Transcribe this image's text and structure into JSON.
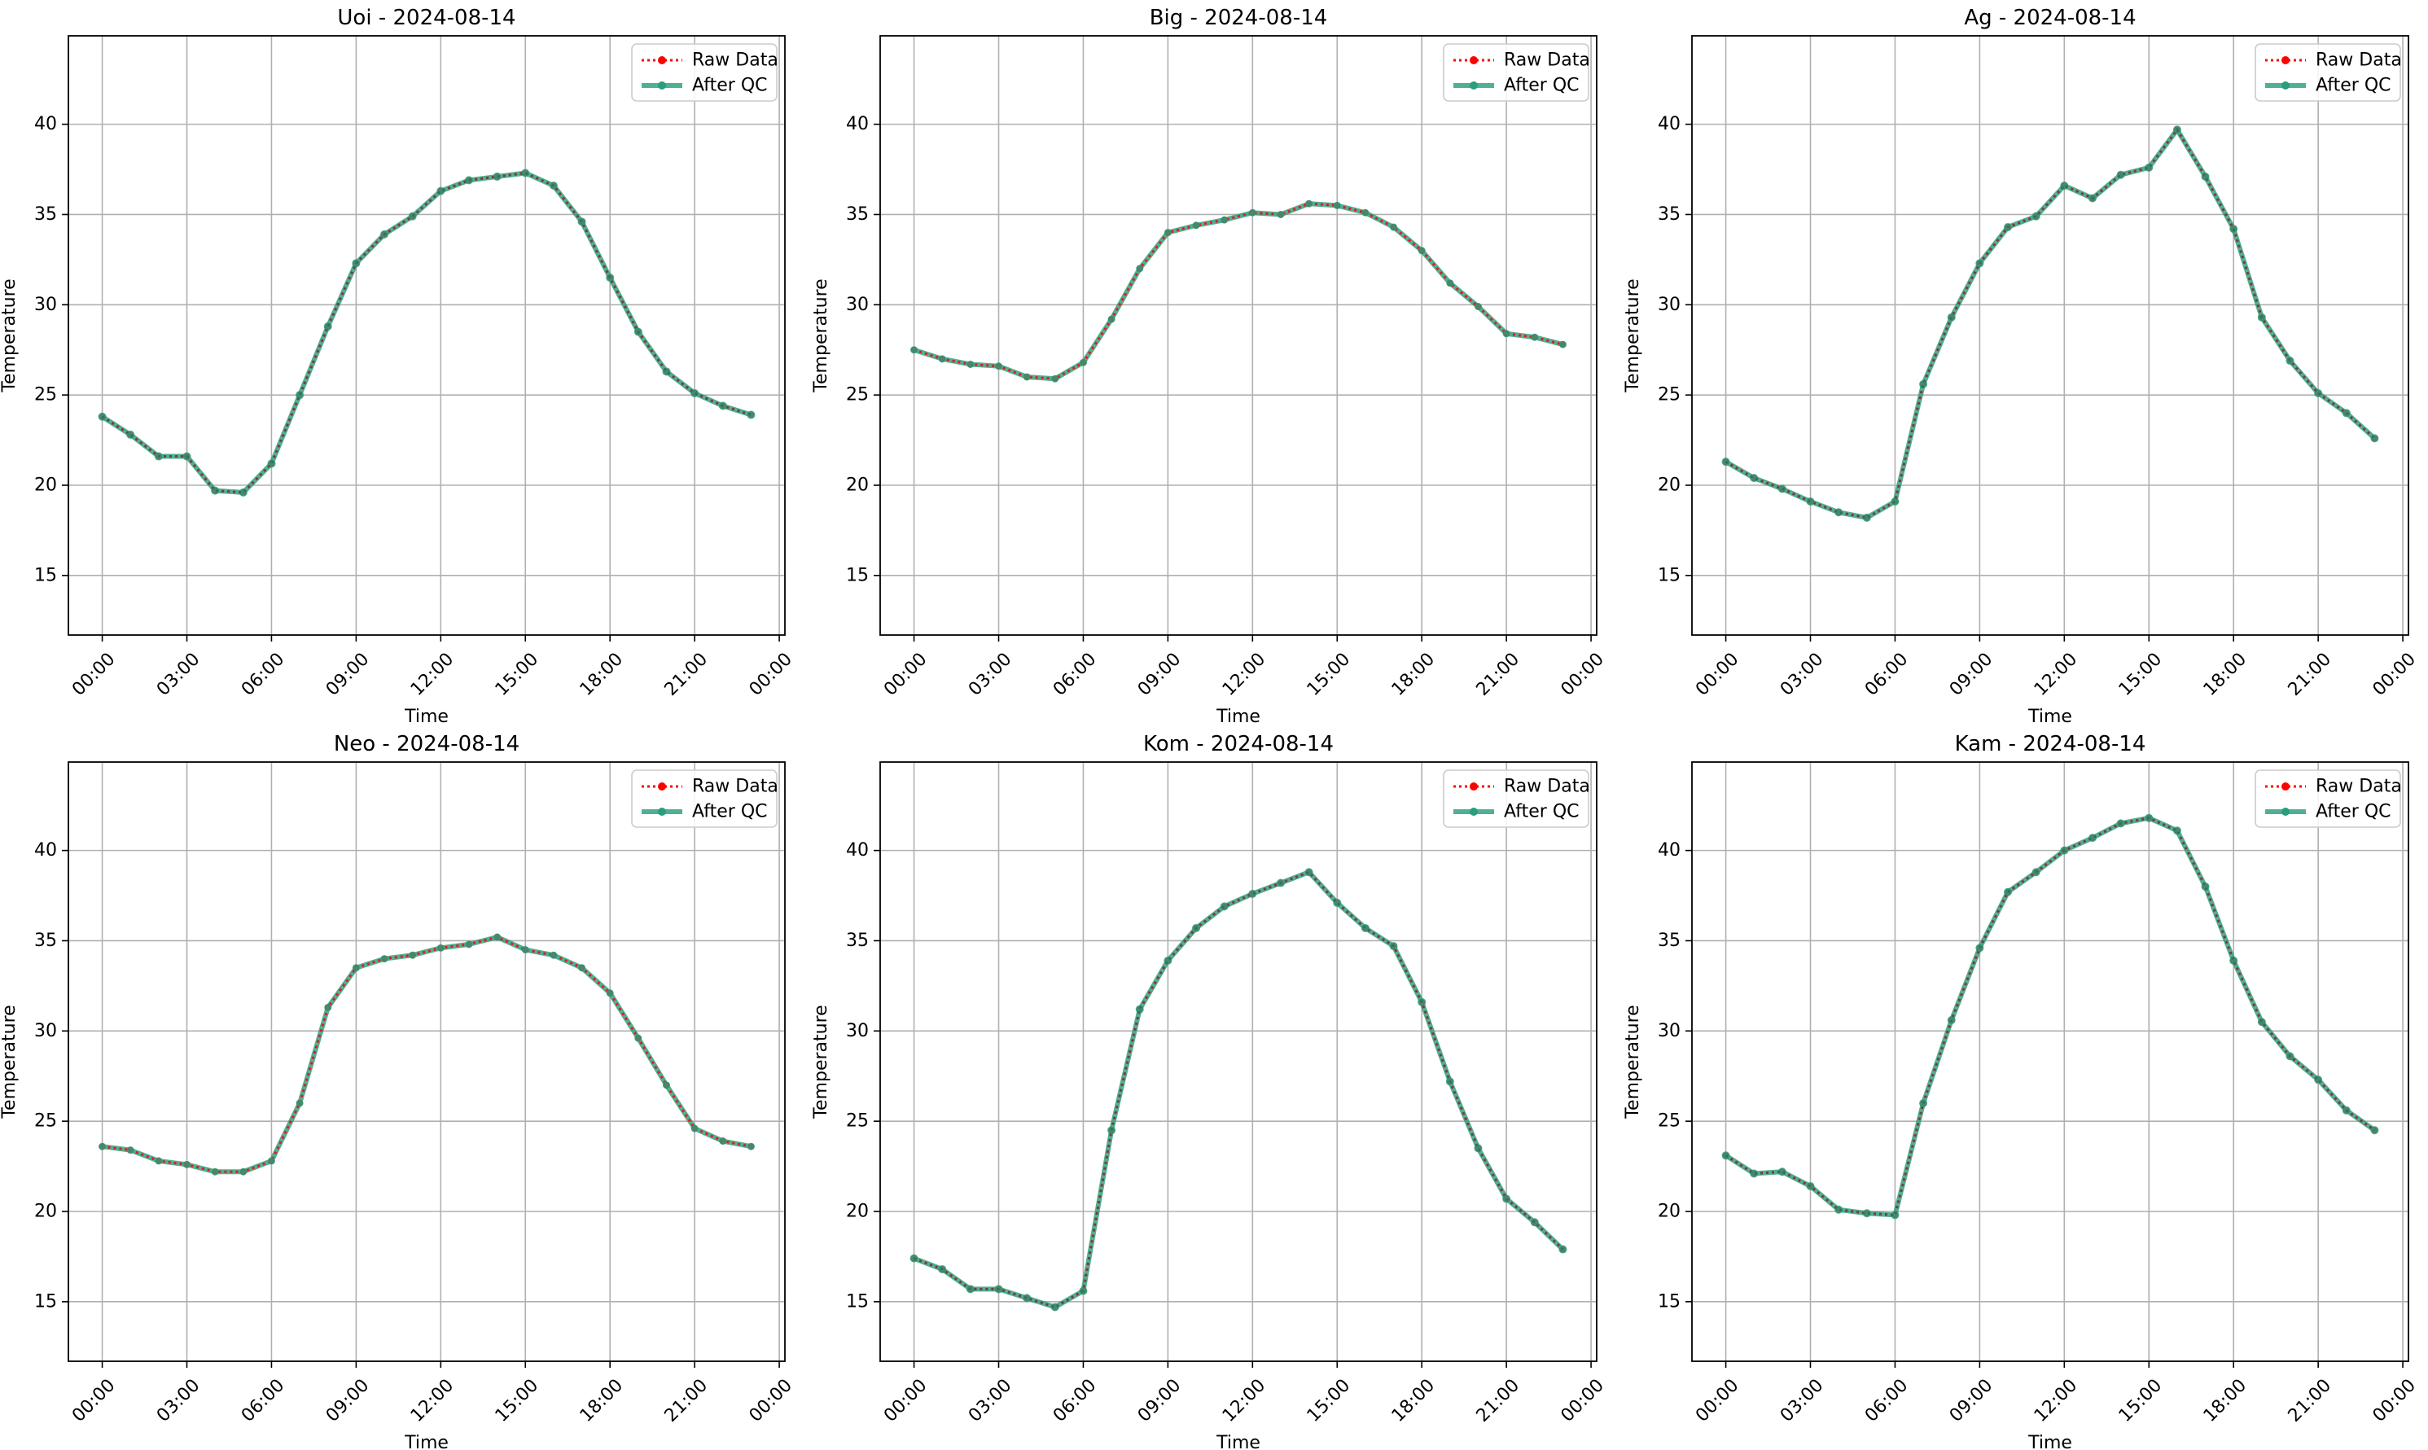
{
  "colors": {
    "raw": "#ff0000",
    "qc": "#2a9d7c",
    "grid": "#b0b0b0",
    "axis": "#000000"
  },
  "chart_data": [
    {
      "type": "line",
      "title": "Uoi - 2024-08-14",
      "xlabel": "Time",
      "ylabel": "Temperature",
      "x_ticklabels": [
        "00:00",
        "03:00",
        "06:00",
        "09:00",
        "12:00",
        "15:00",
        "18:00",
        "21:00",
        "00:00"
      ],
      "xlim_hours": [
        -1.2,
        24.2
      ],
      "ylim": [
        11.7,
        44.9
      ],
      "yticks": [
        15,
        20,
        25,
        30,
        35,
        40
      ],
      "grid": true,
      "legend_position": "top-right",
      "x_hours": [
        0,
        1,
        2,
        3,
        4,
        5,
        6,
        7,
        8,
        9,
        10,
        11,
        12,
        13,
        14,
        15,
        16,
        17,
        18,
        19,
        20,
        21,
        22,
        23
      ],
      "series": [
        {
          "name": "Raw Data",
          "style": "dotted-red-points",
          "values": [
            23.8,
            22.8,
            21.6,
            21.6,
            19.7,
            19.6,
            21.2,
            25.0,
            28.8,
            32.3,
            33.9,
            34.9,
            36.3,
            36.9,
            37.1,
            37.3,
            36.6,
            34.6,
            31.5,
            28.5,
            26.3,
            25.1,
            24.4,
            23.9
          ]
        },
        {
          "name": "After QC",
          "style": "solid-green-points",
          "values": [
            23.8,
            22.8,
            21.6,
            21.6,
            19.7,
            19.6,
            21.2,
            25.0,
            28.8,
            32.3,
            33.9,
            34.9,
            36.3,
            36.9,
            37.1,
            37.3,
            36.6,
            34.6,
            31.5,
            28.5,
            26.3,
            25.1,
            24.4,
            23.9
          ]
        }
      ]
    },
    {
      "type": "line",
      "title": "Big - 2024-08-14",
      "xlabel": "Time",
      "ylabel": "Temperature",
      "x_ticklabels": [
        "00:00",
        "03:00",
        "06:00",
        "09:00",
        "12:00",
        "15:00",
        "18:00",
        "21:00",
        "00:00"
      ],
      "xlim_hours": [
        -1.2,
        24.2
      ],
      "ylim": [
        11.7,
        44.9
      ],
      "yticks": [
        15,
        20,
        25,
        30,
        35,
        40
      ],
      "grid": true,
      "legend_position": "top-right",
      "x_hours": [
        0,
        1,
        2,
        3,
        4,
        5,
        6,
        7,
        8,
        9,
        10,
        11,
        12,
        13,
        14,
        15,
        16,
        17,
        18,
        19,
        20,
        21,
        22,
        23
      ],
      "series": [
        {
          "name": "Raw Data",
          "style": "dotted-red-points",
          "values": [
            27.5,
            27.0,
            26.7,
            26.6,
            26.0,
            25.9,
            26.8,
            29.2,
            32.0,
            34.0,
            34.4,
            34.7,
            35.1,
            35.0,
            35.6,
            35.5,
            35.1,
            34.3,
            33.0,
            31.2,
            29.9,
            28.4,
            28.2,
            27.8
          ]
        },
        {
          "name": "After QC",
          "style": "solid-green",
          "values": [
            27.5,
            27.0,
            26.7,
            26.6,
            26.0,
            25.9,
            26.8,
            29.2,
            32.0,
            34.0,
            34.4,
            34.7,
            35.1,
            35.0,
            35.6,
            35.5,
            35.1,
            34.3,
            33.0,
            31.2,
            29.9,
            28.4,
            28.2,
            27.8
          ]
        }
      ]
    },
    {
      "type": "line",
      "title": "Ag - 2024-08-14",
      "xlabel": "Time",
      "ylabel": "Temperature",
      "x_ticklabels": [
        "00:00",
        "03:00",
        "06:00",
        "09:00",
        "12:00",
        "15:00",
        "18:00",
        "21:00",
        "00:00"
      ],
      "xlim_hours": [
        -1.2,
        24.2
      ],
      "ylim": [
        11.7,
        44.9
      ],
      "yticks": [
        15,
        20,
        25,
        30,
        35,
        40
      ],
      "grid": true,
      "legend_position": "top-right",
      "x_hours": [
        0,
        1,
        2,
        3,
        4,
        5,
        6,
        7,
        8,
        9,
        10,
        11,
        12,
        13,
        14,
        15,
        16,
        17,
        18,
        19,
        20,
        21,
        22,
        23
      ],
      "series": [
        {
          "name": "Raw Data",
          "style": "dotted-red-points",
          "values": [
            21.3,
            20.4,
            19.8,
            19.1,
            18.5,
            18.2,
            19.1,
            25.6,
            29.3,
            32.3,
            34.3,
            34.9,
            36.6,
            35.9,
            37.2,
            37.6,
            39.7,
            37.1,
            34.2,
            29.3,
            26.9,
            25.1,
            24.0,
            22.6
          ]
        },
        {
          "name": "After QC",
          "style": "solid-green-points",
          "values": [
            21.3,
            20.4,
            19.8,
            19.1,
            18.5,
            18.2,
            19.1,
            25.6,
            29.3,
            32.3,
            34.3,
            34.9,
            36.6,
            35.9,
            37.2,
            37.6,
            39.7,
            37.1,
            34.2,
            29.3,
            26.9,
            25.1,
            24.0,
            22.6
          ]
        }
      ]
    },
    {
      "type": "line",
      "title": "Neo - 2024-08-14",
      "xlabel": "Time",
      "ylabel": "Temperature",
      "x_ticklabels": [
        "00:00",
        "03:00",
        "06:00",
        "09:00",
        "12:00",
        "15:00",
        "18:00",
        "21:00",
        "00:00"
      ],
      "xlim_hours": [
        -1.2,
        24.2
      ],
      "ylim": [
        11.7,
        44.9
      ],
      "yticks": [
        15,
        20,
        25,
        30,
        35,
        40
      ],
      "grid": true,
      "legend_position": "top-right",
      "x_hours": [
        0,
        1,
        2,
        3,
        4,
        5,
        6,
        7,
        8,
        9,
        10,
        11,
        12,
        13,
        14,
        15,
        16,
        17,
        18,
        19,
        20,
        21,
        22,
        23
      ],
      "series": [
        {
          "name": "Raw Data",
          "style": "dotted-red-points",
          "values": [
            23.6,
            23.4,
            22.8,
            22.6,
            22.2,
            22.2,
            22.8,
            26.0,
            31.3,
            33.5,
            34.0,
            34.2,
            34.6,
            34.8,
            35.2,
            34.5,
            34.2,
            33.5,
            32.1,
            29.6,
            27.0,
            24.6,
            23.9,
            23.6
          ]
        },
        {
          "name": "After QC",
          "style": "solid-green",
          "values": [
            23.6,
            23.4,
            22.8,
            22.6,
            22.2,
            22.2,
            22.8,
            26.0,
            31.3,
            33.5,
            34.0,
            34.2,
            34.6,
            34.8,
            35.2,
            34.5,
            34.2,
            33.5,
            32.1,
            29.6,
            27.0,
            24.6,
            23.9,
            23.6
          ]
        }
      ]
    },
    {
      "type": "line",
      "title": "Kom - 2024-08-14",
      "xlabel": "Time",
      "ylabel": "Temperature",
      "x_ticklabels": [
        "00:00",
        "03:00",
        "06:00",
        "09:00",
        "12:00",
        "15:00",
        "18:00",
        "21:00",
        "00:00"
      ],
      "xlim_hours": [
        -1.2,
        24.2
      ],
      "ylim": [
        11.7,
        44.9
      ],
      "yticks": [
        15,
        20,
        25,
        30,
        35,
        40
      ],
      "grid": true,
      "legend_position": "top-right",
      "x_hours": [
        0,
        1,
        2,
        3,
        4,
        5,
        6,
        7,
        8,
        9,
        10,
        11,
        12,
        13,
        14,
        15,
        16,
        17,
        18,
        19,
        20,
        21,
        22,
        23
      ],
      "series": [
        {
          "name": "Raw Data",
          "style": "dotted-red-points",
          "values": [
            17.4,
            16.8,
            15.7,
            15.7,
            15.2,
            14.7,
            15.6,
            24.5,
            31.2,
            33.9,
            35.7,
            36.9,
            37.6,
            38.2,
            38.8,
            37.1,
            35.7,
            34.7,
            31.6,
            27.2,
            23.5,
            20.7,
            19.4,
            17.9
          ]
        },
        {
          "name": "After QC",
          "style": "solid-green-points",
          "values": [
            17.4,
            16.8,
            15.7,
            15.7,
            15.2,
            14.7,
            15.6,
            24.5,
            31.2,
            33.9,
            35.7,
            36.9,
            37.6,
            38.2,
            38.8,
            37.1,
            35.7,
            34.7,
            31.6,
            27.2,
            23.5,
            20.7,
            19.4,
            17.9
          ]
        }
      ]
    },
    {
      "type": "line",
      "title": "Kam - 2024-08-14",
      "xlabel": "Time",
      "ylabel": "Temperature",
      "x_ticklabels": [
        "00:00",
        "03:00",
        "06:00",
        "09:00",
        "12:00",
        "15:00",
        "18:00",
        "21:00",
        "00:00"
      ],
      "xlim_hours": [
        -1.2,
        24.2
      ],
      "ylim": [
        11.7,
        44.9
      ],
      "yticks": [
        15,
        20,
        25,
        30,
        35,
        40
      ],
      "grid": true,
      "legend_position": "top-right",
      "x_hours": [
        0,
        1,
        2,
        3,
        4,
        5,
        6,
        7,
        8,
        9,
        10,
        11,
        12,
        13,
        14,
        15,
        16,
        17,
        18,
        19,
        20,
        21,
        22,
        23
      ],
      "series": [
        {
          "name": "Raw Data",
          "style": "dotted-red-points",
          "values": [
            23.1,
            22.1,
            22.2,
            21.4,
            20.1,
            19.9,
            19.8,
            26.0,
            30.6,
            34.6,
            37.7,
            38.8,
            40.0,
            40.7,
            41.5,
            41.8,
            41.1,
            38.0,
            33.9,
            30.5,
            28.6,
            27.3,
            25.6,
            24.5
          ]
        },
        {
          "name": "After QC",
          "style": "solid-green-points",
          "values": [
            23.1,
            22.1,
            22.2,
            21.4,
            20.1,
            19.9,
            19.8,
            26.0,
            30.6,
            34.6,
            37.7,
            38.8,
            40.0,
            40.7,
            41.5,
            41.8,
            41.1,
            38.0,
            33.9,
            30.5,
            28.6,
            27.3,
            25.6,
            24.5
          ]
        }
      ]
    }
  ]
}
